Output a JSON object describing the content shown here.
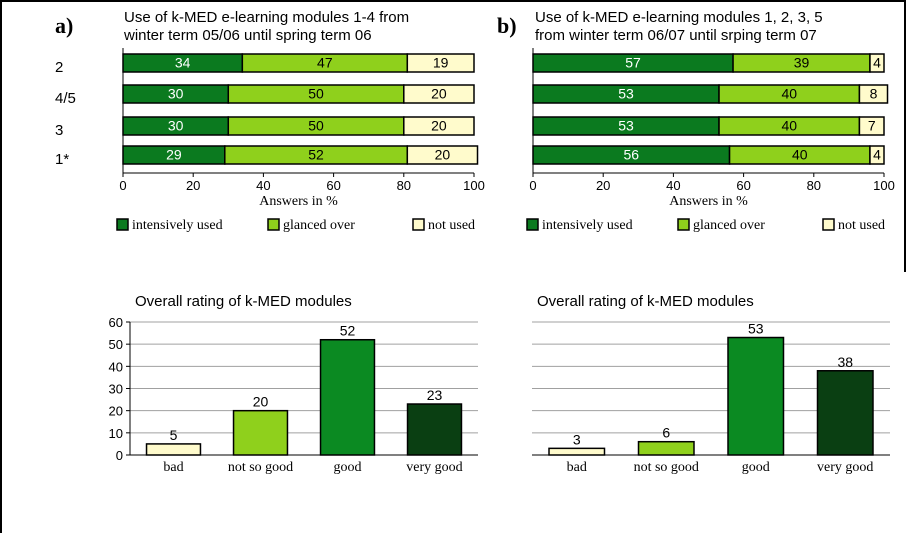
{
  "colors": {
    "intensive": "#0b7a1f",
    "glanced": "#8fd01c",
    "not_used": "#fffbcc",
    "bad": "#fffbcc",
    "not_so_good": "#8fd01c",
    "good": "#0b8a22",
    "very_good": "#0a3f12"
  },
  "chart_data": [
    {
      "type": "bar",
      "orientation": "horizontal",
      "stacked": true,
      "panel_label": "a)",
      "title": "Use of k-MED e-learning modules 1-4 from winter term 05/06 until spring term 06",
      "title_lines": [
        "Use of k-MED e-learning modules 1-4 from",
        "winter term 05/06 until spring term 06"
      ],
      "categories": [
        "2",
        "4/5",
        "3",
        "1*"
      ],
      "series": [
        {
          "name": "intensively used",
          "values": [
            34,
            30,
            30,
            29
          ]
        },
        {
          "name": "glanced over",
          "values": [
            47,
            50,
            50,
            52
          ]
        },
        {
          "name": "not used",
          "values": [
            19,
            20,
            20,
            20
          ]
        }
      ],
      "xlabel": "Answers in %",
      "xlim": [
        0,
        100
      ],
      "xticks": [
        0,
        20,
        40,
        60,
        80,
        100
      ],
      "legend": "bottom"
    },
    {
      "type": "bar",
      "orientation": "horizontal",
      "stacked": true,
      "panel_label": "b)",
      "title": "Use of  k-MED e-learning modules 1, 2, 3, 5 from winter term 06/07 until srping term 07",
      "title_lines": [
        "Use of  k-MED e-learning modules 1, 2, 3, 5",
        "from winter term 06/07 until srping term 07"
      ],
      "categories": [
        "",
        "",
        "",
        ""
      ],
      "series": [
        {
          "name": "intensively used",
          "values": [
            57,
            53,
            53,
            56
          ]
        },
        {
          "name": "glanced over",
          "values": [
            39,
            40,
            40,
            40
          ]
        },
        {
          "name": "not used",
          "values": [
            4,
            8,
            7,
            4
          ]
        }
      ],
      "xlabel": "Answers in %",
      "xlim": [
        0,
        100
      ],
      "xticks": [
        0,
        20,
        40,
        60,
        80,
        100
      ],
      "legend": "bottom"
    },
    {
      "type": "bar",
      "title": "Overall rating of k-MED modules",
      "categories": [
        "bad",
        "not so good",
        "good",
        "very good"
      ],
      "values": [
        5,
        20,
        52,
        23
      ],
      "ylim": [
        0,
        60
      ],
      "yticks": [
        0,
        10,
        20,
        30,
        40,
        50,
        60
      ],
      "grid": true
    },
    {
      "type": "bar",
      "title": "Overall rating of k-MED modules",
      "categories": [
        "bad",
        "not so good",
        "good",
        "very good"
      ],
      "values": [
        3,
        6,
        53,
        38
      ],
      "ylim": [
        0,
        60
      ],
      "yticks": [],
      "grid": true
    }
  ]
}
